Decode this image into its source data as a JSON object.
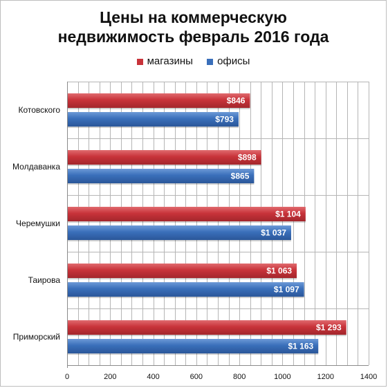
{
  "chart_data": {
    "type": "bar",
    "orientation": "horizontal",
    "title_lines": [
      "Цены на коммерческую",
      "недвижимость февраль 2016 года"
    ],
    "categories": [
      "Котовского",
      "Молдаванка",
      "Черемушки",
      "Таирова",
      "Приморский"
    ],
    "series": [
      {
        "name": "магазины",
        "color": "#c8333a",
        "values": [
          846,
          898,
          1104,
          1063,
          1293
        ],
        "labels": [
          "$846",
          "$898",
          "$1 104",
          "$1 063",
          "$1 293"
        ]
      },
      {
        "name": "офисы",
        "color": "#3a6fba",
        "values": [
          793,
          865,
          1037,
          1097,
          1163
        ],
        "labels": [
          "$793",
          "$865",
          "$1 037",
          "$1 097",
          "$1 163"
        ]
      }
    ],
    "xlim": [
      0,
      1400
    ],
    "x_ticks": [
      0,
      200,
      400,
      600,
      800,
      1000,
      1200,
      1400
    ],
    "minor_grid_step": 50,
    "grid": true,
    "legend_position": "top"
  }
}
